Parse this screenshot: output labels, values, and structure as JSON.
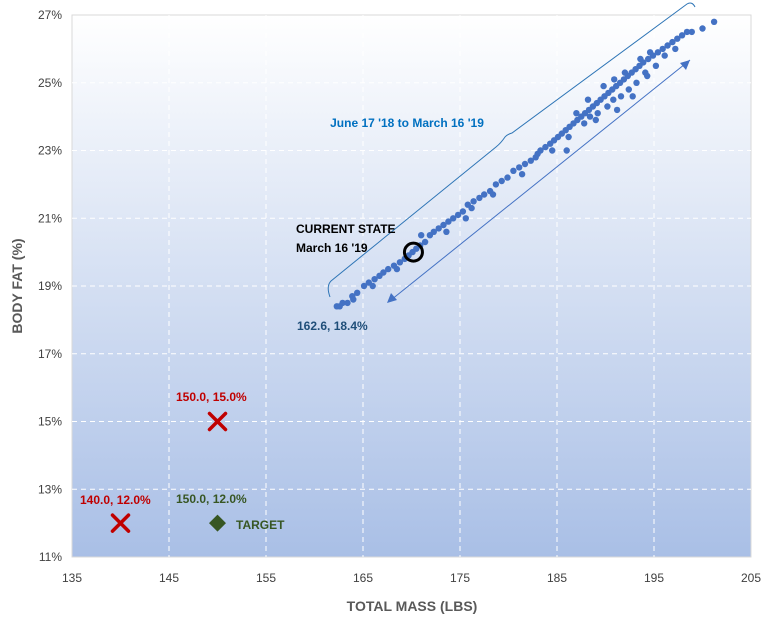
{
  "chart_data": {
    "type": "scatter",
    "xlabel": "TOTAL MASS (LBS)",
    "ylabel": "BODY FAT (%)",
    "xlim": [
      135,
      205
    ],
    "ylim": [
      11,
      27
    ],
    "xticks": [
      135,
      145,
      155,
      165,
      175,
      185,
      195,
      205
    ],
    "yticks": [
      11,
      13,
      15,
      17,
      19,
      21,
      23,
      25,
      27
    ],
    "x_tick_labels": [
      "135",
      "145",
      "155",
      "165",
      "175",
      "185",
      "195",
      "205"
    ],
    "y_tick_labels": [
      "11%",
      "13%",
      "15%",
      "17%",
      "19%",
      "21%",
      "23%",
      "25%",
      "27%"
    ],
    "grid": true,
    "colors": {
      "series": "#4472C4",
      "goal_x": "#C00000",
      "target": "#375623",
      "bracket": "#2E75B6",
      "period_label": "#0070C0",
      "start_label": "#1F4E79",
      "plot_top": "#FFFFFF",
      "plot_bottom": "#A9BFE6"
    },
    "series": [
      {
        "name": "",
        "points": [
          [
            162.3,
            18.4
          ],
          [
            162.6,
            18.4
          ],
          [
            162.9,
            18.5
          ],
          [
            163.4,
            18.5
          ],
          [
            163.9,
            18.7
          ],
          [
            164.4,
            18.8
          ],
          [
            165.1,
            19.0
          ],
          [
            165.6,
            19.1
          ],
          [
            166.2,
            19.2
          ],
          [
            166.7,
            19.3
          ],
          [
            167.1,
            19.4
          ],
          [
            167.6,
            19.5
          ],
          [
            168.2,
            19.6
          ],
          [
            168.8,
            19.7
          ],
          [
            169.3,
            19.8
          ],
          [
            169.7,
            19.9
          ],
          [
            170.1,
            20.0
          ],
          [
            170.5,
            20.1
          ],
          [
            170.9,
            20.2
          ],
          [
            171.4,
            20.3
          ],
          [
            171.9,
            20.5
          ],
          [
            172.3,
            20.6
          ],
          [
            172.8,
            20.7
          ],
          [
            173.3,
            20.8
          ],
          [
            173.8,
            20.9
          ],
          [
            174.3,
            21.0
          ],
          [
            174.8,
            21.1
          ],
          [
            175.3,
            21.2
          ],
          [
            175.8,
            21.4
          ],
          [
            176.4,
            21.5
          ],
          [
            177.0,
            21.6
          ],
          [
            177.5,
            21.7
          ],
          [
            178.1,
            21.8
          ],
          [
            178.7,
            22.0
          ],
          [
            179.3,
            22.1
          ],
          [
            179.9,
            22.2
          ],
          [
            180.5,
            22.4
          ],
          [
            181.1,
            22.5
          ],
          [
            181.7,
            22.6
          ],
          [
            182.3,
            22.7
          ],
          [
            182.8,
            22.8
          ],
          [
            183.3,
            23.0
          ],
          [
            183.8,
            23.1
          ],
          [
            184.3,
            23.2
          ],
          [
            184.7,
            23.3
          ],
          [
            185.1,
            23.4
          ],
          [
            185.5,
            23.5
          ],
          [
            185.9,
            23.6
          ],
          [
            186.3,
            23.7
          ],
          [
            186.7,
            23.8
          ],
          [
            187.1,
            23.9
          ],
          [
            187.5,
            24.0
          ],
          [
            187.9,
            24.1
          ],
          [
            188.3,
            24.2
          ],
          [
            188.7,
            24.3
          ],
          [
            189.1,
            24.4
          ],
          [
            189.5,
            24.5
          ],
          [
            189.9,
            24.6
          ],
          [
            190.3,
            24.7
          ],
          [
            190.7,
            24.8
          ],
          [
            191.1,
            24.9
          ],
          [
            191.5,
            25.0
          ],
          [
            191.9,
            25.1
          ],
          [
            192.3,
            25.2
          ],
          [
            192.7,
            25.3
          ],
          [
            193.1,
            25.4
          ],
          [
            193.5,
            25.5
          ],
          [
            193.9,
            25.6
          ],
          [
            194.4,
            25.7
          ],
          [
            194.9,
            25.8
          ],
          [
            195.4,
            25.9
          ],
          [
            195.9,
            26.0
          ],
          [
            196.4,
            26.1
          ],
          [
            196.9,
            26.2
          ],
          [
            197.4,
            26.3
          ],
          [
            197.9,
            26.4
          ],
          [
            198.4,
            26.5
          ],
          [
            198.9,
            26.5
          ],
          [
            200.0,
            26.6
          ],
          [
            201.2,
            26.8
          ],
          [
            184.5,
            23.0
          ],
          [
            186.2,
            23.4
          ],
          [
            187.8,
            23.8
          ],
          [
            188.4,
            24.0
          ],
          [
            189.2,
            24.1
          ],
          [
            190.2,
            24.3
          ],
          [
            190.8,
            24.5
          ],
          [
            191.6,
            24.6
          ],
          [
            192.4,
            24.8
          ],
          [
            193.2,
            25.0
          ],
          [
            194.1,
            25.3
          ],
          [
            195.2,
            25.5
          ],
          [
            196.1,
            25.8
          ],
          [
            197.2,
            26.0
          ],
          [
            187.0,
            24.1
          ],
          [
            188.2,
            24.5
          ],
          [
            189.8,
            24.9
          ],
          [
            190.9,
            25.1
          ],
          [
            192.0,
            25.3
          ],
          [
            193.6,
            25.7
          ],
          [
            194.6,
            25.9
          ],
          [
            186.0,
            23.0
          ],
          [
            189.0,
            23.9
          ],
          [
            191.2,
            24.2
          ],
          [
            192.8,
            24.6
          ],
          [
            194.3,
            25.2
          ],
          [
            176.2,
            21.3
          ],
          [
            178.4,
            21.7
          ],
          [
            181.4,
            22.3
          ],
          [
            183.0,
            22.9
          ],
          [
            171.0,
            20.5
          ],
          [
            168.5,
            19.5
          ],
          [
            166.0,
            19.0
          ],
          [
            164.0,
            18.6
          ],
          [
            173.6,
            20.6
          ],
          [
            175.6,
            21.0
          ]
        ]
      }
    ],
    "annotations": {
      "period_label": "June 17 '18 to March 16 '19",
      "current_state_title": "CURRENT STATE",
      "current_state_date": "March 16 '19",
      "current_point": [
        170.2,
        20.0
      ],
      "start_label": "162.6, 18.4%",
      "goal1_label": "150.0, 15.0%",
      "goal1_point": [
        150.0,
        15.0
      ],
      "goal2_label": "140.0, 12.0%",
      "goal2_point": [
        140.0,
        12.0
      ],
      "target_value_label": "150.0, 12.0%",
      "target_point": [
        150.0,
        12.0
      ],
      "target_label": "TARGET"
    }
  }
}
